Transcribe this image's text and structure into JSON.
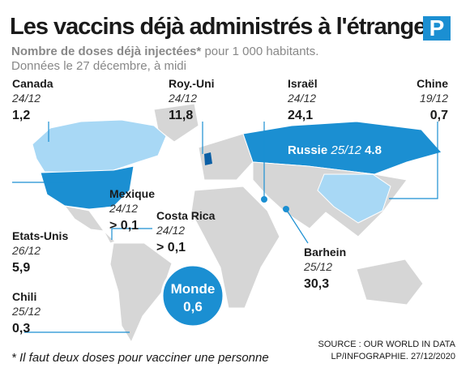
{
  "header": {
    "title": "Les vaccins déjà administrés à l'étranger",
    "subtitle_bold": "Nombre de doses déjà injectées*",
    "subtitle_rest": "pour 1 000 habitants.",
    "date_note": "Données le 27 décembre, à midi",
    "logo": "P"
  },
  "countries": [
    {
      "name": "Canada",
      "date": "24/12",
      "value": "1,2"
    },
    {
      "name": "Roy.-Uni",
      "date": "24/12",
      "value": "11,8"
    },
    {
      "name": "Israël",
      "date": "24/12",
      "value": "24,1"
    },
    {
      "name": "Chine",
      "date": "19/12",
      "value": "0,7"
    },
    {
      "name": "Mexique",
      "date": "24/12",
      "value": "> 0,1"
    },
    {
      "name": "Costa Rica",
      "date": "24/12",
      "value": "> 0,1"
    },
    {
      "name": "Etats-Unis",
      "date": "26/12",
      "value": "5,9"
    },
    {
      "name": "Chili",
      "date": "25/12",
      "value": "0,3"
    },
    {
      "name": "Barhein",
      "date": "25/12",
      "value": "30,3"
    },
    {
      "name": "Russie",
      "date": "25/12",
      "value": "4.8"
    }
  ],
  "world": {
    "name": "Monde",
    "value": "0,6"
  },
  "footnote": "* Il faut deux doses pour vacciner une personne",
  "source": [
    "SOURCE : OUR WORLD IN DATA",
    "LP/INFOGRAPHIE. 27/12/2020"
  ]
}
